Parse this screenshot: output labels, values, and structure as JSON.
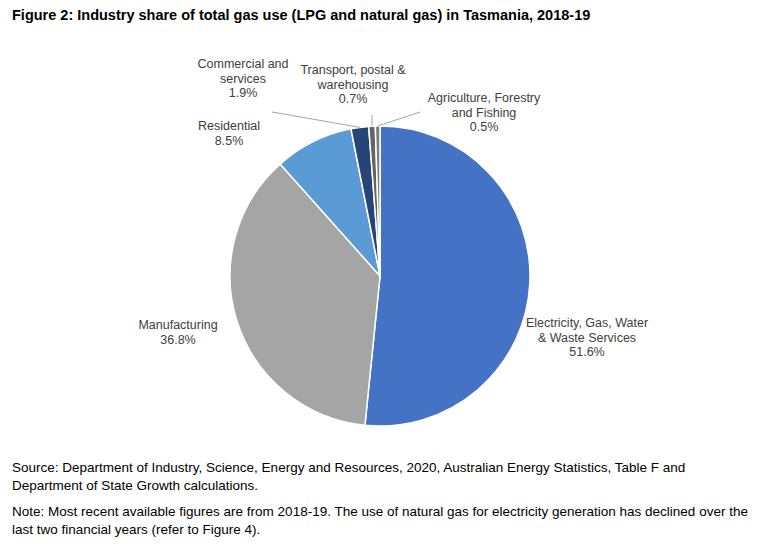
{
  "chart_data": {
    "type": "pie",
    "title": "Figure 2: Industry share of total gas use (LPG and natural gas) in Tasmania, 2018-19",
    "categories": [
      "Electricity, Gas, Water & Waste Services",
      "Manufacturing",
      "Residential",
      "Commercial and services",
      "Transport, postal & warehousing",
      "Agriculture, Forestry and Fishing"
    ],
    "values": [
      51.6,
      36.8,
      8.5,
      1.9,
      0.7,
      0.5
    ],
    "value_labels": [
      "51.6%",
      "36.8%",
      "8.5%",
      "1.9%",
      "0.7%",
      "0.5%"
    ],
    "colors": [
      "#4472c4",
      "#a5a5a5",
      "#5b9bd5",
      "#264478",
      "#636363",
      "#7f7f7f"
    ],
    "data_labels": true,
    "annotations": [
      "Source: Department of Industry, Science, Energy and Resources, 2020, Australian Energy Statistics, Table F and Department of State Growth calculations.",
      "Note: Most recent available figures are from 2018-19. The use of natural gas for electricity generation has declined over the last two financial years (refer to Figure 4)."
    ]
  }
}
